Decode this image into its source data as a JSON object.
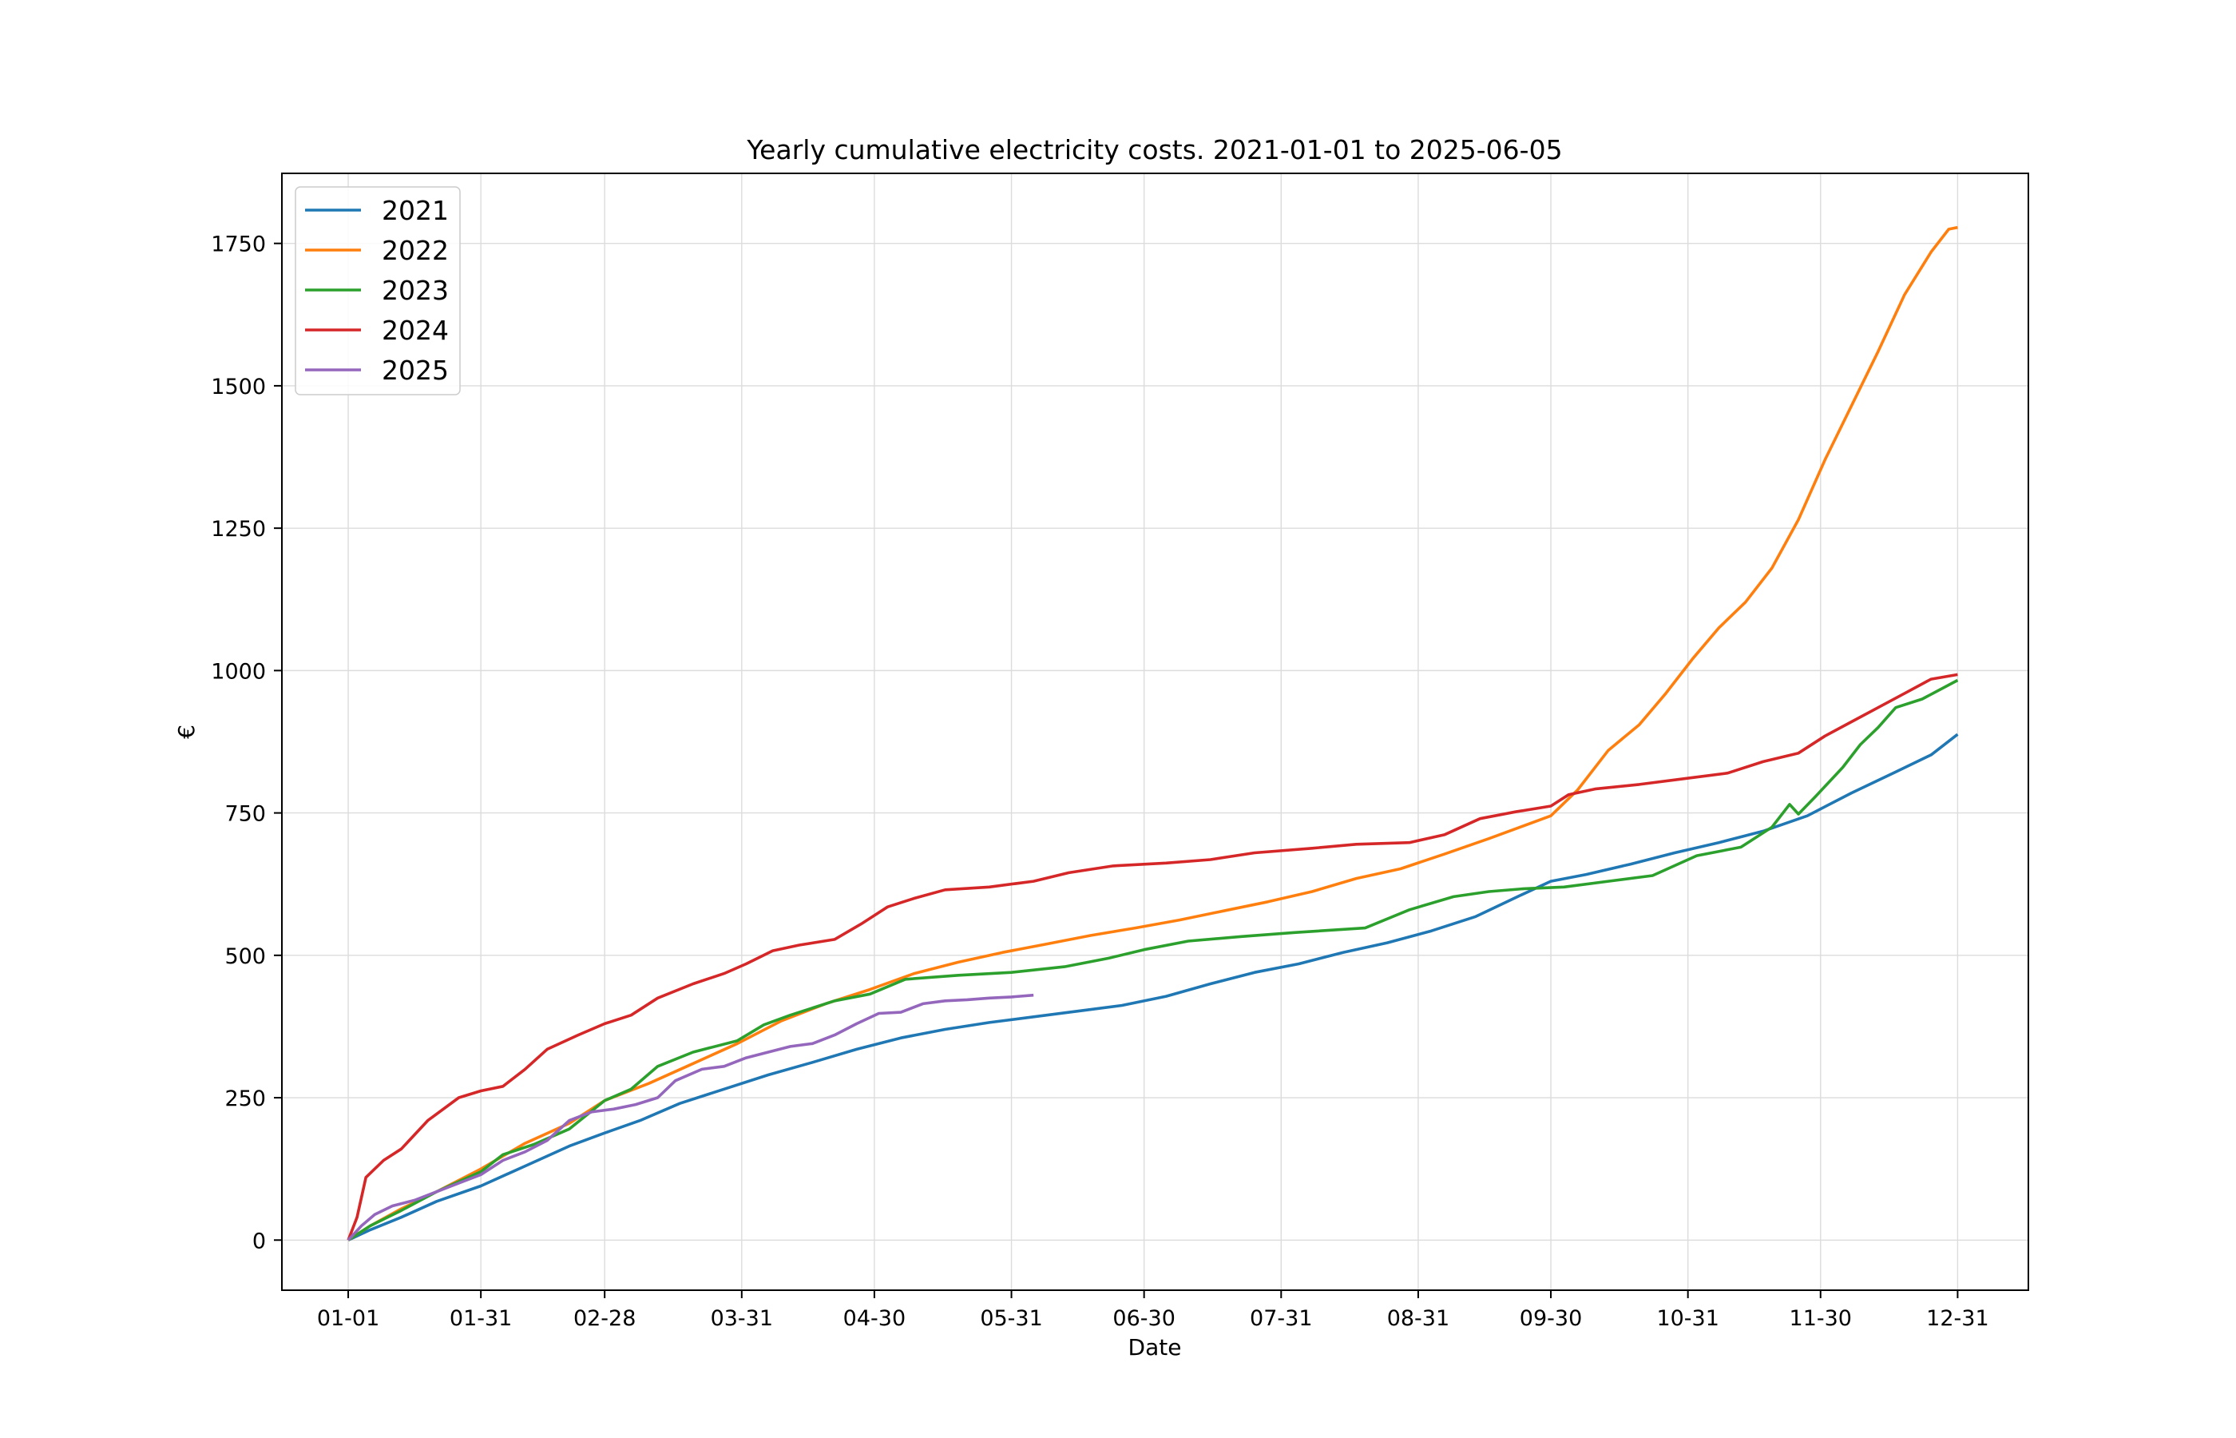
{
  "chart_data": {
    "type": "line",
    "title": "Yearly cumulative electricity costs. 2021-01-01 to 2025-06-05",
    "xlabel": "Date",
    "ylabel": "€",
    "x_unit": "day of year",
    "xlim": [
      -15,
      380
    ],
    "ylim": [
      -88,
      1873
    ],
    "x_ticks": [
      {
        "x": 0,
        "label": "01-01"
      },
      {
        "x": 30,
        "label": "01-31"
      },
      {
        "x": 58,
        "label": "02-28"
      },
      {
        "x": 89,
        "label": "03-31"
      },
      {
        "x": 119,
        "label": "04-30"
      },
      {
        "x": 150,
        "label": "05-31"
      },
      {
        "x": 180,
        "label": "06-30"
      },
      {
        "x": 211,
        "label": "07-31"
      },
      {
        "x": 242,
        "label": "08-31"
      },
      {
        "x": 272,
        "label": "09-30"
      },
      {
        "x": 303,
        "label": "10-31"
      },
      {
        "x": 333,
        "label": "11-30"
      },
      {
        "x": 364,
        "label": "12-31"
      }
    ],
    "y_ticks": [
      0,
      250,
      500,
      750,
      1000,
      1250,
      1500,
      1750
    ],
    "grid": true,
    "legend_position": "upper left",
    "series": [
      {
        "name": "2021",
        "color": "#1f77b4",
        "points": [
          [
            0,
            0
          ],
          [
            5,
            18
          ],
          [
            12,
            40
          ],
          [
            20,
            68
          ],
          [
            30,
            95
          ],
          [
            40,
            130
          ],
          [
            50,
            165
          ],
          [
            58,
            188
          ],
          [
            66,
            210
          ],
          [
            75,
            240
          ],
          [
            85,
            265
          ],
          [
            95,
            290
          ],
          [
            105,
            312
          ],
          [
            115,
            335
          ],
          [
            125,
            355
          ],
          [
            135,
            370
          ],
          [
            145,
            382
          ],
          [
            155,
            392
          ],
          [
            165,
            402
          ],
          [
            175,
            412
          ],
          [
            185,
            428
          ],
          [
            195,
            450
          ],
          [
            205,
            470
          ],
          [
            215,
            485
          ],
          [
            225,
            505
          ],
          [
            235,
            522
          ],
          [
            245,
            543
          ],
          [
            255,
            568
          ],
          [
            265,
            605
          ],
          [
            272,
            630
          ],
          [
            280,
            642
          ],
          [
            290,
            660
          ],
          [
            300,
            680
          ],
          [
            310,
            698
          ],
          [
            320,
            718
          ],
          [
            330,
            745
          ],
          [
            340,
            785
          ],
          [
            350,
            822
          ],
          [
            358,
            852
          ],
          [
            364,
            888
          ]
        ]
      },
      {
        "name": "2022",
        "color": "#ff7f0e",
        "points": [
          [
            0,
            0
          ],
          [
            5,
            25
          ],
          [
            12,
            55
          ],
          [
            20,
            85
          ],
          [
            30,
            125
          ],
          [
            40,
            170
          ],
          [
            50,
            205
          ],
          [
            58,
            245
          ],
          [
            68,
            275
          ],
          [
            78,
            310
          ],
          [
            88,
            345
          ],
          [
            98,
            385
          ],
          [
            108,
            415
          ],
          [
            118,
            440
          ],
          [
            128,
            468
          ],
          [
            138,
            488
          ],
          [
            148,
            505
          ],
          [
            158,
            520
          ],
          [
            168,
            535
          ],
          [
            178,
            548
          ],
          [
            188,
            562
          ],
          [
            198,
            578
          ],
          [
            208,
            594
          ],
          [
            218,
            612
          ],
          [
            228,
            635
          ],
          [
            238,
            652
          ],
          [
            248,
            678
          ],
          [
            258,
            705
          ],
          [
            265,
            725
          ],
          [
            272,
            745
          ],
          [
            278,
            790
          ],
          [
            285,
            860
          ],
          [
            292,
            905
          ],
          [
            298,
            960
          ],
          [
            304,
            1020
          ],
          [
            310,
            1075
          ],
          [
            316,
            1120
          ],
          [
            322,
            1180
          ],
          [
            328,
            1265
          ],
          [
            334,
            1370
          ],
          [
            340,
            1465
          ],
          [
            346,
            1560
          ],
          [
            352,
            1660
          ],
          [
            358,
            1735
          ],
          [
            362,
            1775
          ],
          [
            364,
            1778
          ]
        ]
      },
      {
        "name": "2023",
        "color": "#2ca02c",
        "points": [
          [
            0,
            0
          ],
          [
            5,
            25
          ],
          [
            12,
            52
          ],
          [
            20,
            85
          ],
          [
            30,
            120
          ],
          [
            35,
            150
          ],
          [
            42,
            168
          ],
          [
            50,
            195
          ],
          [
            58,
            245
          ],
          [
            64,
            265
          ],
          [
            70,
            305
          ],
          [
            78,
            330
          ],
          [
            88,
            350
          ],
          [
            94,
            378
          ],
          [
            100,
            395
          ],
          [
            110,
            420
          ],
          [
            118,
            432
          ],
          [
            126,
            458
          ],
          [
            138,
            465
          ],
          [
            150,
            470
          ],
          [
            162,
            480
          ],
          [
            172,
            495
          ],
          [
            180,
            510
          ],
          [
            190,
            525
          ],
          [
            202,
            533
          ],
          [
            214,
            540
          ],
          [
            230,
            548
          ],
          [
            240,
            580
          ],
          [
            250,
            603
          ],
          [
            258,
            612
          ],
          [
            266,
            617
          ],
          [
            275,
            620
          ],
          [
            285,
            630
          ],
          [
            295,
            640
          ],
          [
            305,
            675
          ],
          [
            315,
            690
          ],
          [
            322,
            725
          ],
          [
            326,
            765
          ],
          [
            328,
            748
          ],
          [
            332,
            780
          ],
          [
            338,
            830
          ],
          [
            342,
            870
          ],
          [
            346,
            900
          ],
          [
            350,
            935
          ],
          [
            356,
            950
          ],
          [
            364,
            983
          ]
        ]
      },
      {
        "name": "2024",
        "color": "#d62728",
        "points": [
          [
            0,
            0
          ],
          [
            2,
            40
          ],
          [
            4,
            110
          ],
          [
            8,
            140
          ],
          [
            12,
            160
          ],
          [
            18,
            210
          ],
          [
            25,
            250
          ],
          [
            30,
            262
          ],
          [
            35,
            270
          ],
          [
            40,
            300
          ],
          [
            45,
            335
          ],
          [
            52,
            360
          ],
          [
            58,
            380
          ],
          [
            64,
            395
          ],
          [
            70,
            425
          ],
          [
            78,
            450
          ],
          [
            85,
            468
          ],
          [
            90,
            485
          ],
          [
            96,
            508
          ],
          [
            102,
            518
          ],
          [
            110,
            528
          ],
          [
            116,
            555
          ],
          [
            122,
            585
          ],
          [
            128,
            600
          ],
          [
            135,
            615
          ],
          [
            145,
            620
          ],
          [
            155,
            630
          ],
          [
            163,
            645
          ],
          [
            173,
            657
          ],
          [
            185,
            662
          ],
          [
            195,
            668
          ],
          [
            205,
            680
          ],
          [
            218,
            688
          ],
          [
            228,
            695
          ],
          [
            240,
            698
          ],
          [
            248,
            712
          ],
          [
            256,
            740
          ],
          [
            264,
            752
          ],
          [
            272,
            762
          ],
          [
            276,
            782
          ],
          [
            282,
            792
          ],
          [
            292,
            800
          ],
          [
            302,
            810
          ],
          [
            312,
            820
          ],
          [
            320,
            840
          ],
          [
            328,
            855
          ],
          [
            334,
            885
          ],
          [
            340,
            910
          ],
          [
            346,
            935
          ],
          [
            352,
            960
          ],
          [
            358,
            985
          ],
          [
            364,
            993
          ]
        ]
      },
      {
        "name": "2025",
        "color": "#9467bd",
        "points": [
          [
            0,
            0
          ],
          [
            3,
            25
          ],
          [
            6,
            45
          ],
          [
            10,
            60
          ],
          [
            15,
            70
          ],
          [
            20,
            85
          ],
          [
            25,
            100
          ],
          [
            30,
            115
          ],
          [
            35,
            140
          ],
          [
            40,
            155
          ],
          [
            45,
            175
          ],
          [
            50,
            210
          ],
          [
            55,
            225
          ],
          [
            60,
            230
          ],
          [
            65,
            238
          ],
          [
            70,
            250
          ],
          [
            74,
            280
          ],
          [
            80,
            300
          ],
          [
            85,
            305
          ],
          [
            90,
            320
          ],
          [
            95,
            330
          ],
          [
            100,
            340
          ],
          [
            105,
            345
          ],
          [
            110,
            360
          ],
          [
            115,
            380
          ],
          [
            120,
            398
          ],
          [
            125,
            400
          ],
          [
            130,
            415
          ],
          [
            135,
            420
          ],
          [
            140,
            422
          ],
          [
            145,
            425
          ],
          [
            150,
            427
          ],
          [
            155,
            430
          ]
        ]
      }
    ]
  }
}
